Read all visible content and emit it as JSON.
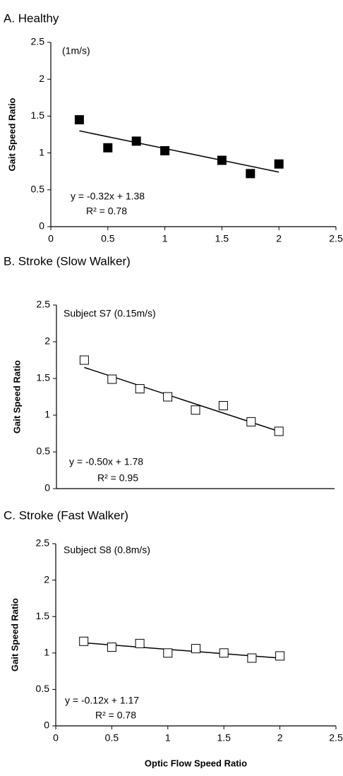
{
  "chart_data": [
    {
      "type": "scatter",
      "title": "A. Healthy",
      "annotation": "(1m/s)",
      "ylabel": "Gait Speed Ratio",
      "x": [
        0.25,
        0.5,
        0.75,
        1,
        1.5,
        1.75,
        2
      ],
      "values": [
        1.45,
        1.07,
        1.16,
        1.03,
        0.9,
        0.72,
        0.85
      ],
      "marker_fill": "#000000",
      "color": "#000000",
      "trendline": {
        "x": [
          0.25,
          2
        ],
        "y": [
          1.3,
          0.74
        ]
      },
      "equation": "y = -0.32x + 1.38",
      "r_squared": "R² = 0.78",
      "xlim": [
        0,
        2.5
      ],
      "xticks": [
        0,
        0.5,
        1,
        1.5,
        2,
        2.5
      ],
      "ylim": [
        0,
        2.5
      ],
      "yticks": [
        0,
        0.5,
        1,
        1.5,
        2,
        2.5
      ]
    },
    {
      "type": "scatter",
      "title": "B. Stroke (Slow Walker)",
      "annotation": "Subject S7 (0.15m/s)",
      "ylabel": "Gait Speed Ratio",
      "x": [
        0.25,
        0.5,
        0.75,
        1,
        1.25,
        1.5,
        1.75,
        2
      ],
      "values": [
        1.75,
        1.49,
        1.36,
        1.25,
        1.07,
        1.13,
        0.91,
        0.78
      ],
      "marker_fill": "#ffffff",
      "color": "#000000",
      "trendline": {
        "x": [
          0.25,
          2
        ],
        "y": [
          1.65,
          0.78
        ]
      },
      "equation": "y = -0.50x + 1.78",
      "r_squared": "R² = 0.95",
      "xlim": [
        0,
        2.5
      ],
      "ylim": [
        0,
        2.5
      ],
      "yticks": [
        0,
        0.5,
        1,
        1.5,
        2,
        2.5
      ]
    },
    {
      "type": "scatter",
      "title": "C. Stroke (Fast Walker)",
      "annotation": "Subject S8 (0.8m/s)",
      "ylabel": "Gait Speed Ratio",
      "xlabel": "Optic Flow Speed Ratio",
      "x": [
        0.25,
        0.5,
        0.75,
        1,
        1.25,
        1.5,
        1.75,
        2
      ],
      "values": [
        1.16,
        1.08,
        1.13,
        1.0,
        1.06,
        1.0,
        0.93,
        0.96
      ],
      "marker_fill": "#ffffff",
      "color": "#000000",
      "trendline": {
        "x": [
          0.25,
          2
        ],
        "y": [
          1.14,
          0.93
        ]
      },
      "equation": "y = -0.12x + 1.17",
      "r_squared": "R² = 0.78",
      "xlim": [
        0,
        2.5
      ],
      "xticks": [
        0,
        0.5,
        1,
        1.5,
        2,
        2.5
      ],
      "ylim": [
        0,
        2.5
      ],
      "yticks": [
        0,
        0.5,
        1,
        1.5,
        2,
        2.5
      ]
    }
  ]
}
